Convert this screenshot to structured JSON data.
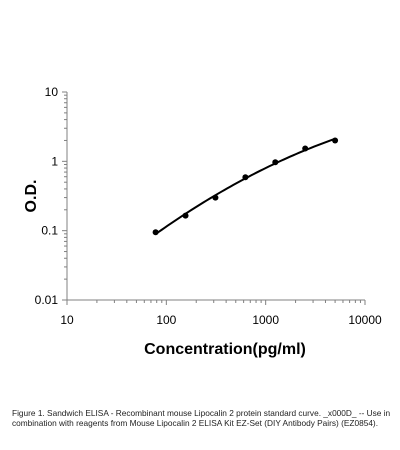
{
  "chart_data": {
    "type": "scatter",
    "x_scale": "log",
    "y_scale": "log",
    "xlabel": "Concentration(pg/ml)",
    "ylabel": "O.D.",
    "xlim": [
      10,
      10000
    ],
    "ylim": [
      0.01,
      10
    ],
    "x_ticks": [
      "10",
      "100",
      "1000",
      "10000"
    ],
    "y_ticks": [
      "0.01",
      "0.1",
      "1",
      "10"
    ],
    "grid": false,
    "series": [
      {
        "x": [
          78,
          156,
          312,
          625,
          1250,
          2500,
          5000
        ],
        "y": [
          0.095,
          0.165,
          0.3,
          0.59,
          0.97,
          1.53,
          2.0
        ]
      }
    ],
    "colors": {
      "marker": "#000000",
      "curve": "#000000",
      "axis": "#808080"
    }
  },
  "caption": "Figure 1. Sandwich ELISA - Recombinant mouse Lipocalin 2 protein standard curve. _x000D_ -- Use in combination with reagents from Mouse Lipocalin 2 ELISA Kit EZ-Set (DIY Antibody Pairs) (EZ0854)."
}
